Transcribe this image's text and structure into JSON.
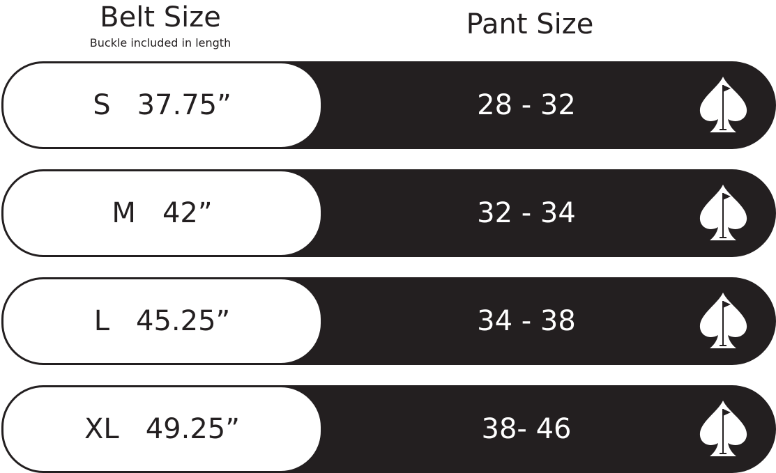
{
  "header": {
    "belt_title": "Belt Size",
    "belt_subtitle": "Buckle included in length",
    "pant_title": "Pant Size"
  },
  "rows": [
    {
      "size": "S",
      "length": "37.75”",
      "pant": "28 - 32"
    },
    {
      "size": "M",
      "length": "42”",
      "pant": "32 - 34"
    },
    {
      "size": "L",
      "length": "45.25”",
      "pant": "34 - 38"
    },
    {
      "size": "XL",
      "length": "49.25”",
      "pant": "38- 46"
    }
  ],
  "icon": "spade-golf-flag-icon",
  "colors": {
    "dark": "#231f20",
    "light": "#ffffff"
  }
}
